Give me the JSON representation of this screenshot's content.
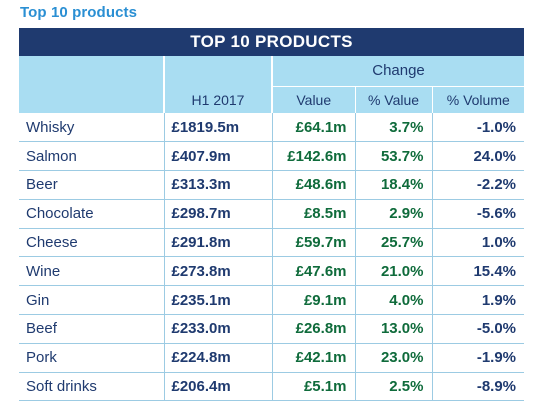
{
  "section_title": "Top 10 products",
  "table": {
    "title": "TOP 10 PRODUCTS",
    "header": {
      "change": "Change",
      "h1": "H1 2017",
      "value": "Value",
      "pct_value": "% Value",
      "pct_volume": "% Volume"
    },
    "colors": {
      "title_bg": "#1f3a6f",
      "header_bg": "#a9ddf2",
      "positive": "#0f6b3b",
      "negative": "#d9293a",
      "section_title": "#2a8fd3"
    },
    "rows": [
      {
        "product": "Whisky",
        "h1": "£1819.5m",
        "value": "£64.1m",
        "pct_value": "3.7%",
        "pct_volume": "-1.0%"
      },
      {
        "product": "Salmon",
        "h1": "£407.9m",
        "value": "£142.6m",
        "pct_value": "53.7%",
        "pct_volume": "24.0%"
      },
      {
        "product": "Beer",
        "h1": "£313.3m",
        "value": "£48.6m",
        "pct_value": "18.4%",
        "pct_volume": "-2.2%"
      },
      {
        "product": "Chocolate",
        "h1": "£298.7m",
        "value": "£8.5m",
        "pct_value": "2.9%",
        "pct_volume": "-5.6%"
      },
      {
        "product": "Cheese",
        "h1": "£291.8m",
        "value": "£59.7m",
        "pct_value": "25.7%",
        "pct_volume": "1.0%"
      },
      {
        "product": "Wine",
        "h1": "£273.8m",
        "value": "£47.6m",
        "pct_value": "21.0%",
        "pct_volume": "15.4%"
      },
      {
        "product": "Gin",
        "h1": "£235.1m",
        "value": "£9.1m",
        "pct_value": "4.0%",
        "pct_volume": "1.9%"
      },
      {
        "product": "Beef",
        "h1": "£233.0m",
        "value": "£26.8m",
        "pct_value": "13.0%",
        "pct_volume": "-5.0%"
      },
      {
        "product": "Pork",
        "h1": "£224.8m",
        "value": "£42.1m",
        "pct_value": "23.0%",
        "pct_volume": "-1.9%"
      },
      {
        "product": "Soft drinks",
        "h1": "£206.4m",
        "value": "£5.1m",
        "pct_value": "2.5%",
        "pct_volume": "-8.9%"
      }
    ]
  }
}
